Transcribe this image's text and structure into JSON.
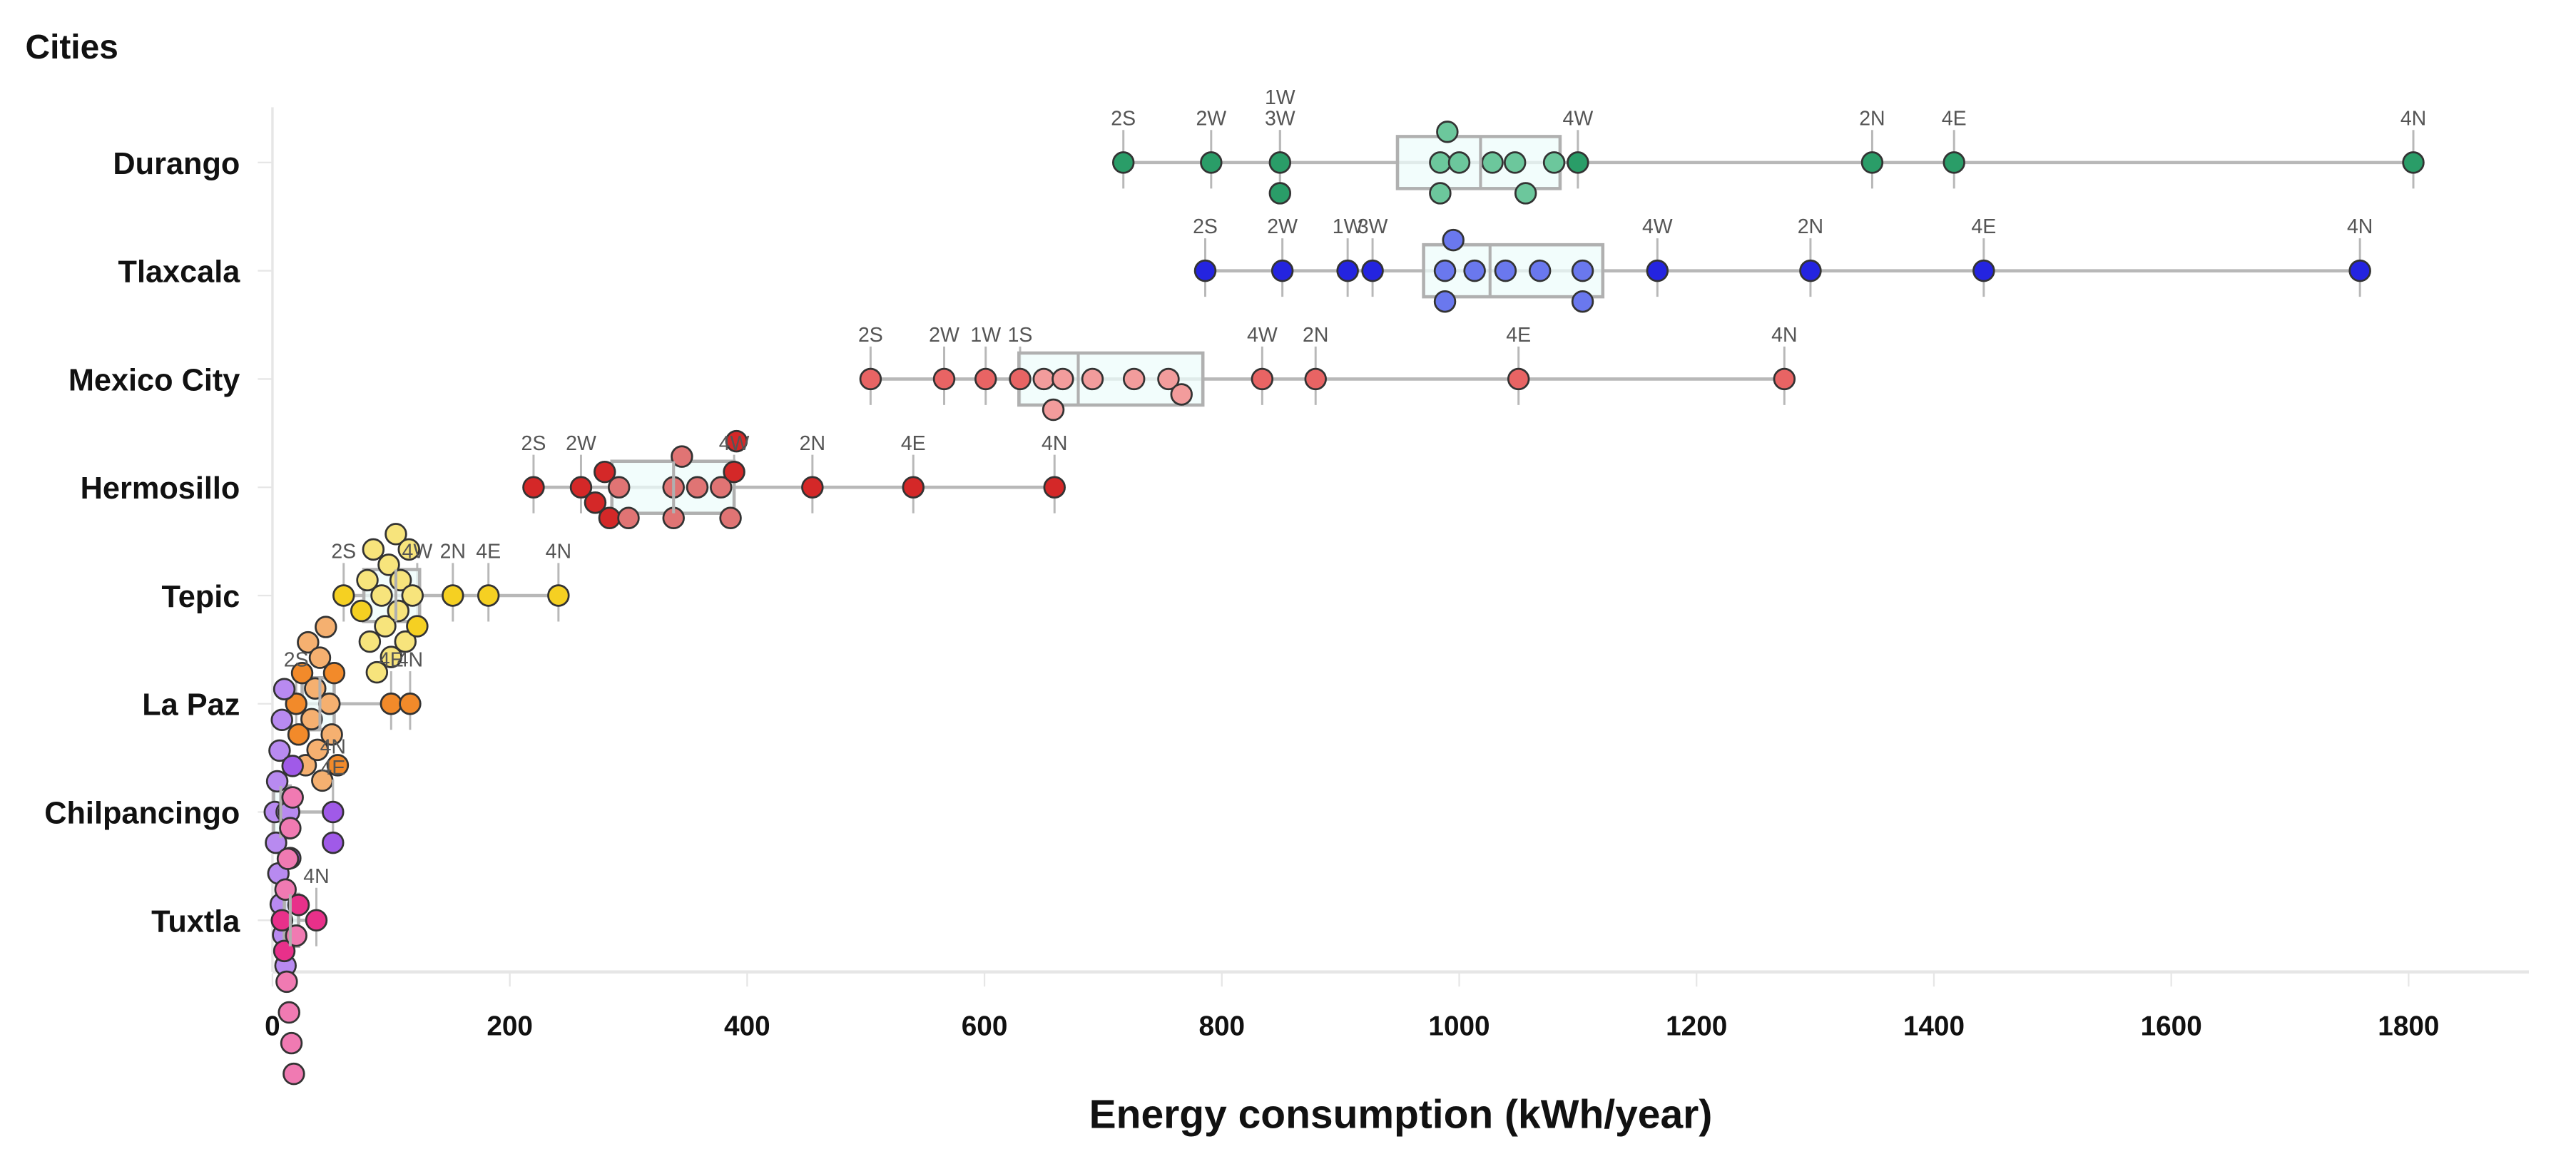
{
  "chart_data": {
    "type": "boxplot-beeswarm",
    "title": "Cities",
    "xlabel": "Energy consumption (kWh/year)",
    "ylabel": "Cities",
    "xlim": [
      0,
      1900
    ],
    "xticks": [
      0,
      200,
      400,
      600,
      800,
      1000,
      1200,
      1400,
      1600,
      1800
    ],
    "grid": false,
    "series": [
      {
        "name": "Durango",
        "color": "#2a9d68",
        "light": "#6cc79c",
        "q1": 948,
        "median": 1018,
        "q3": 1085,
        "points": [
          {
            "v": 717,
            "label": "2S"
          },
          {
            "v": 791,
            "label": "2W"
          },
          {
            "v": 849,
            "label": "3W"
          },
          {
            "v": 849,
            "label": "1W"
          },
          {
            "v": 984
          },
          {
            "v": 984
          },
          {
            "v": 990
          },
          {
            "v": 1000
          },
          {
            "v": 1028
          },
          {
            "v": 1047
          },
          {
            "v": 1056
          },
          {
            "v": 1080
          },
          {
            "v": 1100,
            "label": "4W"
          },
          {
            "v": 1348,
            "label": "2N"
          },
          {
            "v": 1417,
            "label": "4E"
          },
          {
            "v": 1804,
            "label": "4N"
          }
        ]
      },
      {
        "name": "Tlaxcala",
        "color": "#2424e0",
        "light": "#6a78ee",
        "q1": 970,
        "median": 1026,
        "q3": 1121,
        "points": [
          {
            "v": 786,
            "label": "2S"
          },
          {
            "v": 851,
            "label": "2W"
          },
          {
            "v": 906,
            "label": "1W"
          },
          {
            "v": 927,
            "label": "3W"
          },
          {
            "v": 988
          },
          {
            "v": 988
          },
          {
            "v": 995
          },
          {
            "v": 1013
          },
          {
            "v": 1039
          },
          {
            "v": 1068
          },
          {
            "v": 1104
          },
          {
            "v": 1104
          },
          {
            "v": 1167,
            "label": "4W"
          },
          {
            "v": 1296,
            "label": "2N"
          },
          {
            "v": 1442,
            "label": "4E"
          },
          {
            "v": 1759,
            "label": "4N"
          }
        ]
      },
      {
        "name": "Mexico City",
        "color": "#e86464",
        "light": "#f29c9c",
        "q1": 629,
        "median": 679,
        "q3": 784,
        "points": [
          {
            "v": 504,
            "label": "2S"
          },
          {
            "v": 566,
            "label": "2W"
          },
          {
            "v": 601,
            "label": "1W"
          },
          {
            "v": 630,
            "label": "1S"
          },
          {
            "v": 650
          },
          {
            "v": 658
          },
          {
            "v": 666
          },
          {
            "v": 691
          },
          {
            "v": 726
          },
          {
            "v": 755
          },
          {
            "v": 766
          },
          {
            "v": 834,
            "label": "4W"
          },
          {
            "v": 879,
            "label": "2N"
          },
          {
            "v": 1050,
            "label": "4E"
          },
          {
            "v": 1274,
            "label": "4N"
          }
        ]
      },
      {
        "name": "Hermosillo",
        "color": "#d42828",
        "light": "#e07474",
        "q1": 286,
        "median": 338,
        "q3": 389,
        "points": [
          {
            "v": 220,
            "label": "2S"
          },
          {
            "v": 260,
            "label": "2W"
          },
          {
            "v": 272
          },
          {
            "v": 280
          },
          {
            "v": 284
          },
          {
            "v": 292
          },
          {
            "v": 300
          },
          {
            "v": 338
          },
          {
            "v": 338
          },
          {
            "v": 345
          },
          {
            "v": 358
          },
          {
            "v": 378
          },
          {
            "v": 386
          },
          {
            "v": 389,
            "label": "4W"
          },
          {
            "v": 391
          },
          {
            "v": 455,
            "label": "2N"
          },
          {
            "v": 540,
            "label": "4E"
          },
          {
            "v": 659,
            "label": "4N"
          }
        ]
      },
      {
        "name": "Tepic",
        "color": "#f5d022",
        "light": "#f7e47c",
        "q1": 77,
        "median": 104,
        "q3": 124,
        "points": [
          {
            "v": 60,
            "label": "2S"
          },
          {
            "v": 75
          },
          {
            "v": 80
          },
          {
            "v": 82
          },
          {
            "v": 85
          },
          {
            "v": 88
          },
          {
            "v": 92
          },
          {
            "v": 95
          },
          {
            "v": 98
          },
          {
            "v": 100
          },
          {
            "v": 104
          },
          {
            "v": 106
          },
          {
            "v": 108
          },
          {
            "v": 112
          },
          {
            "v": 115
          },
          {
            "v": 118
          },
          {
            "v": 122,
            "label": "4W"
          },
          {
            "v": 152,
            "label": "2N"
          },
          {
            "v": 182,
            "label": "4E"
          },
          {
            "v": 241,
            "label": "4N"
          }
        ]
      },
      {
        "name": "La Paz",
        "color": "#f28a2a",
        "light": "#f5b070",
        "q1": 25,
        "median": 40,
        "q3": 52,
        "points": [
          {
            "v": 20,
            "label": "2S"
          },
          {
            "v": 22
          },
          {
            "v": 25
          },
          {
            "v": 28
          },
          {
            "v": 30
          },
          {
            "v": 33
          },
          {
            "v": 36
          },
          {
            "v": 38
          },
          {
            "v": 40
          },
          {
            "v": 42
          },
          {
            "v": 45
          },
          {
            "v": 48
          },
          {
            "v": 50
          },
          {
            "v": 52
          },
          {
            "v": 55
          },
          {
            "v": 100,
            "label": "4E"
          },
          {
            "v": 116,
            "label": "4N"
          }
        ]
      },
      {
        "name": "Chilpancingo",
        "color": "#a05ae8",
        "light": "#b88af0",
        "q1": 1,
        "median": 7,
        "q3": 15,
        "points": [
          {
            "v": 2
          },
          {
            "v": 3
          },
          {
            "v": 4
          },
          {
            "v": 5
          },
          {
            "v": 6
          },
          {
            "v": 7
          },
          {
            "v": 8
          },
          {
            "v": 9
          },
          {
            "v": 10
          },
          {
            "v": 11
          },
          {
            "v": 12
          },
          {
            "v": 14
          },
          {
            "v": 15
          },
          {
            "v": 17
          },
          {
            "v": 51,
            "label": "4E"
          },
          {
            "v": 51,
            "label": "4N"
          }
        ]
      },
      {
        "name": "Tuxtla",
        "color": "#e8308a",
        "light": "#f07ab2",
        "q1": 10,
        "median": 15,
        "q3": 22,
        "points": [
          {
            "v": 8
          },
          {
            "v": 10
          },
          {
            "v": 11
          },
          {
            "v": 12
          },
          {
            "v": 13
          },
          {
            "v": 14
          },
          {
            "v": 15
          },
          {
            "v": 16
          },
          {
            "v": 17
          },
          {
            "v": 18
          },
          {
            "v": 20
          },
          {
            "v": 22
          },
          {
            "v": 37,
            "label": "4N"
          }
        ]
      }
    ]
  }
}
